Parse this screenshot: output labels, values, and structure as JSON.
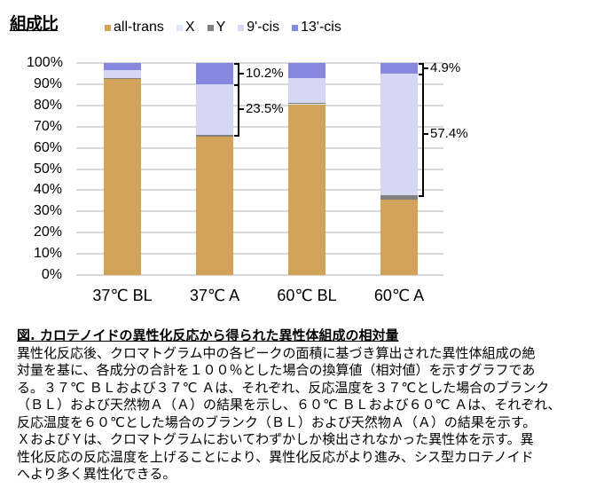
{
  "title": "組成比",
  "chart_data": {
    "type": "bar",
    "stacked": true,
    "categories": [
      "37℃ BL",
      "37℃ A",
      "60℃ BL",
      "60℃ A"
    ],
    "series": [
      {
        "name": "all-trans",
        "color": "#D4A35A",
        "values": [
          92.4,
          65.2,
          80.2,
          35.7
        ]
      },
      {
        "name": "X",
        "color": "#DDE8FA",
        "values": [
          0.0,
          0.0,
          0.4,
          0.0
        ]
      },
      {
        "name": "Y",
        "color": "#808080",
        "values": [
          0.5,
          1.1,
          0.6,
          2.0
        ]
      },
      {
        "name": "9'-cis",
        "color": "#D5D7F3",
        "values": [
          3.8,
          23.5,
          11.7,
          57.4
        ]
      },
      {
        "name": "13'-cis",
        "color": "#8687DF",
        "values": [
          3.3,
          10.2,
          7.1,
          4.9
        ]
      }
    ],
    "yticks": [
      "0%",
      "10%",
      "20%",
      "30%",
      "40%",
      "50%",
      "60%",
      "70%",
      "80%",
      "90%",
      "100%"
    ],
    "ylim": [
      0,
      100
    ],
    "xlabel": "",
    "ylabel": "",
    "grid": true,
    "legend_position": "top",
    "annotations": [
      {
        "category": "37℃ A",
        "series": "13'-cis",
        "text": "10.2%"
      },
      {
        "category": "37℃ A",
        "series": "9'-cis",
        "text": "23.5%"
      },
      {
        "category": "60℃ A",
        "series": "13'-cis",
        "text": "4.9%"
      },
      {
        "category": "60℃ A",
        "series": "9'-cis",
        "text": "57.4%"
      }
    ]
  },
  "caption": {
    "title": "図. カロテノイドの異性化反応から得られた異性体組成の相対量",
    "body": "異性化反応後、クロマトグラム中の各ピークの面積に基づき算出された異性体組成の絶\n対量を基に、各成分の合計を１００％とした場合の換算値（相対値）を示すグラフであ\nる。３７℃ ＢＬおよび３７℃ Ａは、それぞれ、反応温度を３７℃とした場合のブランク\n（ＢＬ）および天然物Ａ（Ａ）の結果を示し、６０℃ ＢＬおよび６０℃ Ａは、それぞれ、\n反応温度を６０℃とした場合のブランク（ＢＬ）および天然物Ａ（Ａ）の結果を示す。\nＸおよびＹは、クロマトグラムにおいてわずかしか検出されなかった異性体を示す。異\n性化反応の反応温度を上げることにより、異性化反応がより進み、シス型カロテノイド\nへより多く異性化できる。"
  }
}
